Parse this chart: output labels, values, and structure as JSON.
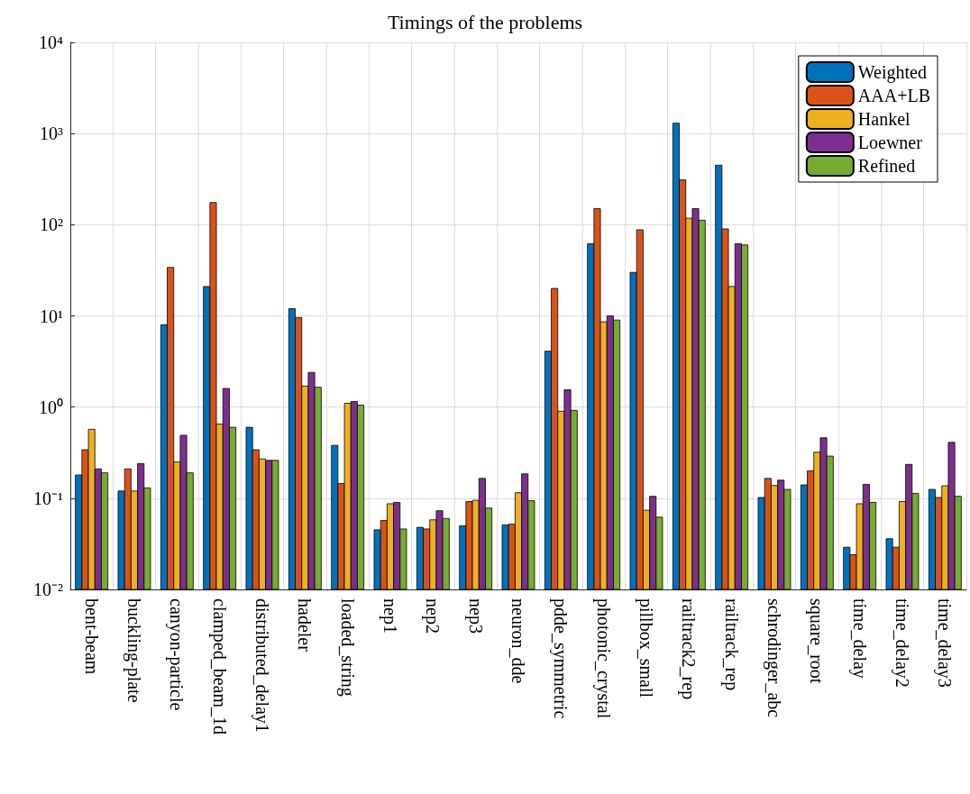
{
  "chart_data": {
    "type": "bar",
    "title": "Timings of the problems",
    "categories": [
      "bent-beam",
      "buckling-plate",
      "canyon-particle",
      "clamped_beam_1d",
      "distributed_delay1",
      "hadeler",
      "loaded_string",
      "nep1",
      "nep2",
      "nep3",
      "neuron_dde",
      "pdde_symmetric",
      "photonic_crystal",
      "pillbox_small",
      "railtrack2_rep",
      "railtrack_rep",
      "schrodinger_abc",
      "square_root",
      "time_delay",
      "time_delay2",
      "time_delay3"
    ],
    "series": [
      {
        "name": "Weighted",
        "color": "#0072bd",
        "values": [
          0.18,
          0.12,
          8.0,
          21,
          0.6,
          12,
          0.38,
          0.045,
          0.048,
          0.05,
          0.051,
          4.1,
          62,
          30,
          1300,
          450,
          0.102,
          0.14,
          0.029,
          0.036,
          0.125
        ]
      },
      {
        "name": "AAA+LB",
        "color": "#d95319",
        "values": [
          0.34,
          0.21,
          34,
          175,
          0.34,
          9.6,
          0.145,
          0.057,
          0.046,
          0.092,
          0.052,
          20,
          150,
          88,
          310,
          90,
          0.165,
          0.2,
          0.024,
          0.029,
          0.102
        ]
      },
      {
        "name": "Hankel",
        "color": "#edb120",
        "values": [
          0.57,
          0.12,
          0.25,
          0.65,
          0.27,
          1.7,
          1.1,
          0.087,
          0.058,
          0.095,
          0.115,
          0.9,
          8.6,
          0.074,
          118,
          21,
          0.138,
          0.32,
          0.087,
          0.092,
          0.137
        ]
      },
      {
        "name": "Loewner",
        "color": "#7e2f8e",
        "values": [
          0.21,
          0.24,
          0.49,
          1.6,
          0.26,
          2.4,
          1.15,
          0.09,
          0.073,
          0.165,
          0.185,
          1.55,
          10,
          0.105,
          150,
          62,
          0.158,
          0.46,
          0.142,
          0.235,
          0.41
        ]
      },
      {
        "name": "Refined",
        "color": "#77ac30",
        "values": [
          0.19,
          0.13,
          0.19,
          0.6,
          0.26,
          1.65,
          1.05,
          0.046,
          0.06,
          0.078,
          0.094,
          0.92,
          9,
          0.062,
          112,
          60,
          0.125,
          0.29,
          0.09,
          0.113,
          0.105
        ]
      }
    ],
    "log": "y",
    "ylim": [
      0.01,
      10000
    ],
    "yticks": [
      {
        "value": 0.01,
        "label": "10⁻²"
      },
      {
        "value": 0.1,
        "label": "10⁻¹"
      },
      {
        "value": 1,
        "label": "10⁰"
      },
      {
        "value": 10,
        "label": "10¹"
      },
      {
        "value": 100,
        "label": "10²"
      },
      {
        "value": 1000,
        "label": "10³"
      },
      {
        "value": 10000,
        "label": "10⁴"
      }
    ],
    "grid": true,
    "legend": "top right"
  }
}
